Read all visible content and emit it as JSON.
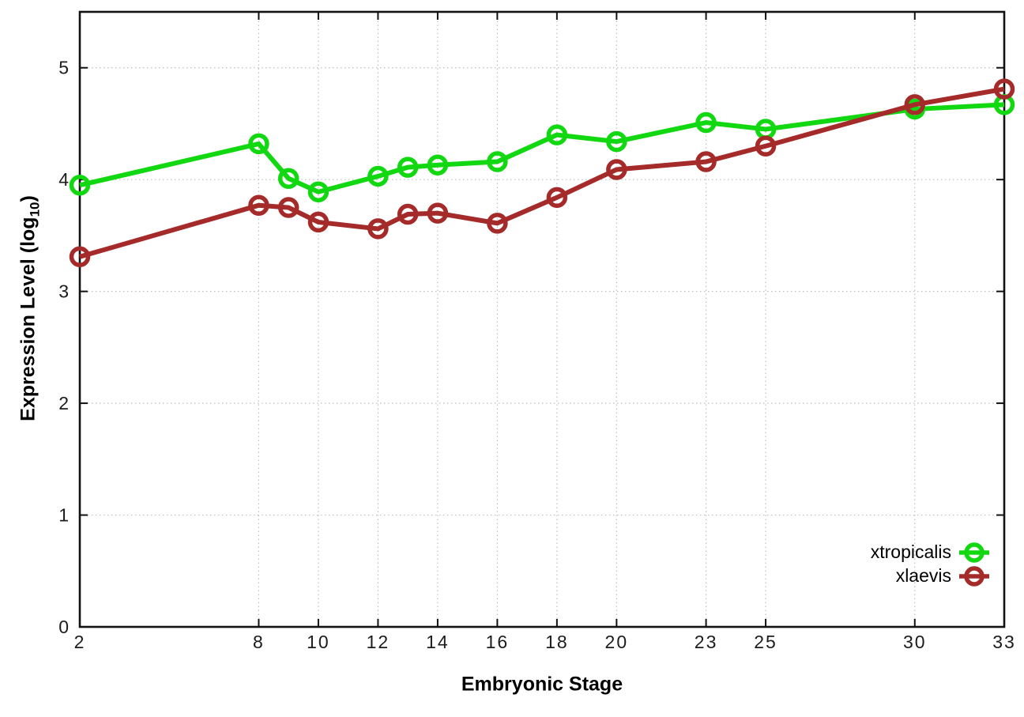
{
  "chart_data": {
    "type": "line",
    "title": "",
    "xlabel": "Embryonic Stage",
    "ylabel_prefix": "Expression Level (log",
    "ylabel_sub": "10",
    "ylabel_suffix": ")",
    "x": [
      2,
      8,
      9,
      10,
      12,
      13,
      14,
      16,
      18,
      20,
      23,
      25,
      30,
      33
    ],
    "x_ticks": [
      "2",
      "8",
      "10",
      "12",
      "14",
      "16",
      "18",
      "20",
      "23",
      "25",
      "30",
      "33"
    ],
    "y_ticks": [
      "0",
      "1",
      "2",
      "3",
      "4",
      "5"
    ],
    "xlim": [
      2,
      33
    ],
    "ylim": [
      0,
      5.5
    ],
    "grid": true,
    "legend_position": "bottom-right",
    "series": [
      {
        "name": "xtropicalis",
        "color": "#12d812",
        "values": [
          3.95,
          4.32,
          4.01,
          3.89,
          4.03,
          4.11,
          4.13,
          4.16,
          4.4,
          4.34,
          4.51,
          4.45,
          4.63,
          4.67
        ]
      },
      {
        "name": "xlaevis",
        "color": "#a52a2a",
        "values": [
          3.31,
          3.77,
          3.75,
          3.62,
          3.56,
          3.69,
          3.7,
          3.61,
          3.84,
          4.09,
          4.16,
          4.3,
          4.67,
          4.81
        ]
      }
    ],
    "colors": {
      "grid": "#bfbfbf",
      "border": "#111111",
      "tick_text": "#1c1c1c",
      "title_text": "#000000",
      "background": "#ffffff"
    }
  }
}
